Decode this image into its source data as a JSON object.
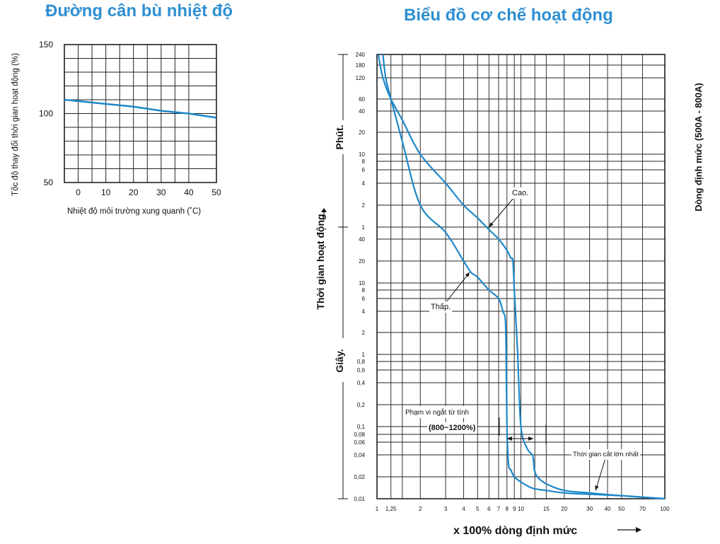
{
  "chart_data": [
    {
      "type": "line",
      "title": "Đường cân bù nhiệt độ",
      "xlabel": "Nhiệt độ môi trường xung quanh (˚C)",
      "ylabel": "Tốc độ thay đổi thời gian hoạt động (%)",
      "xlim": [
        -5,
        50
      ],
      "ylim": [
        50,
        150
      ],
      "x_ticks": [
        "0",
        "10",
        "20",
        "30",
        "40",
        "50"
      ],
      "y_ticks": [
        "50",
        "100",
        "150"
      ],
      "grid": true,
      "series": [
        {
          "x": [
            -5,
            0,
            10,
            20,
            30,
            40,
            50
          ],
          "y": [
            110,
            109,
            107,
            105,
            102,
            100,
            97
          ]
        }
      ]
    },
    {
      "type": "line",
      "title": "Biểu đồ cơ chế hoạt động",
      "xlabel": "x 100% dòng định mức",
      "ylabel_main": "Thời gian hoạt động",
      "ylabel_minutes": "Phút.",
      "ylabel_seconds": "Giây.",
      "right_label": "Dòng định mức (500A - 800A)",
      "x_scale": "log",
      "xlim": [
        1,
        100
      ],
      "x_ticks": [
        "1",
        "1,25",
        "2",
        "3",
        "4",
        "5",
        "6",
        "7",
        "8",
        "9",
        "10",
        "15",
        "20",
        "30",
        "40",
        "50",
        "70",
        "100"
      ],
      "y_ticks_minutes": [
        "240",
        "180",
        "120",
        "60",
        "40",
        "20",
        "10",
        "8",
        "6",
        "4",
        "2",
        "1"
      ],
      "y_ticks_seconds": [
        "40",
        "20",
        "10",
        "8",
        "6",
        "4",
        "2",
        "1",
        "0,8",
        "0,6",
        "0,4",
        "0,2",
        "0,1",
        "0,08",
        "0,06",
        "0,04",
        "0,02",
        "0,01"
      ],
      "annotations": {
        "high": "Cao.",
        "low": "Thấp.",
        "instant_trip": "Phạm vi ngắt từ tính",
        "instant_trip_range": "(800~1200%)",
        "max_break_time": "Thời gian cắt lớn nhất"
      },
      "series": [
        {
          "x": [
            1.02,
            1.1,
            1.25,
            1.5,
            2,
            3,
            4,
            5,
            6,
            7,
            8,
            8.5,
            8.8,
            9,
            9.5,
            10,
            11,
            12,
            12.2,
            12.3,
            12.4,
            13,
            15,
            20,
            30,
            50,
            100
          ],
          "y": [
            14400,
            7200,
            3600,
            1800,
            600,
            240,
            120,
            80,
            55,
            40,
            28,
            22,
            20,
            8,
            1,
            0.1,
            0.05,
            0.04,
            0.035,
            0.03,
            0.025,
            0.02,
            0.016,
            0.013,
            0.012,
            0.011,
            0.01
          ]
        },
        {
          "x": [
            1.1,
            1.15,
            1.25,
            1.5,
            2,
            3,
            4,
            4.5,
            5,
            6,
            7,
            7.5,
            7.8,
            7.9,
            8,
            8.2,
            8.5,
            9,
            10,
            12,
            15,
            20,
            30,
            50,
            100
          ],
          "y": [
            14400,
            7200,
            3600,
            900,
            120,
            50,
            20,
            14,
            12,
            8,
            6,
            4,
            3,
            1,
            0.1,
            0.03,
            0.025,
            0.02,
            0.017,
            0.014,
            0.013,
            0.012,
            0.0115,
            0.011,
            0.01
          ]
        }
      ]
    }
  ]
}
